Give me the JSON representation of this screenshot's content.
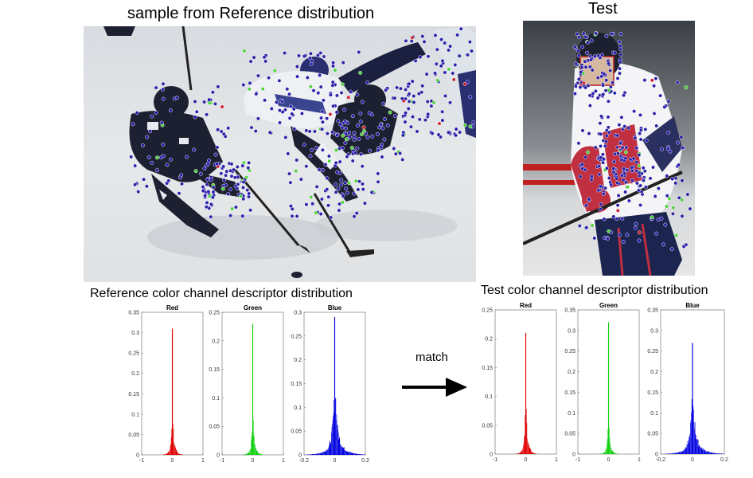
{
  "figure": {
    "reference_title": "sample from Reference distribution",
    "test_title": "Test",
    "reference_hist_title": "Reference color channel descriptor distribution",
    "test_hist_title": "Test color channel descriptor distribution",
    "match_label": "match"
  },
  "colors": {
    "red": "#e00000",
    "green": "#10d010",
    "blue": "#0000e0",
    "keypoint": "#2a1fa8",
    "keypoint_green": "#4cd23a",
    "keypoint_red": "#d02030"
  },
  "icons": {
    "arrow": "arrow-right-icon"
  },
  "chart_data": [
    {
      "type": "histogram",
      "group": "reference",
      "title": "Red",
      "color": "#e00000",
      "xlim": [
        -1,
        1
      ],
      "ylim": [
        0,
        0.35
      ],
      "xticks": [
        -1,
        0,
        1
      ],
      "xtick_labels": [
        "-1",
        "0",
        "1"
      ],
      "yticks": [
        0,
        0.05,
        0.1,
        0.15,
        0.2,
        0.25,
        0.3,
        0.35
      ],
      "ytick_labels": [
        "0",
        "0.05",
        "0.1",
        "0.15",
        "0.2",
        "0.25",
        "0.3",
        "0.35"
      ],
      "peak": 0.31,
      "center": 0.0,
      "spread": 0.02,
      "tail": 0.04
    },
    {
      "type": "histogram",
      "group": "reference",
      "title": "Green",
      "color": "#10d010",
      "xlim": [
        -1,
        1
      ],
      "ylim": [
        0,
        0.25
      ],
      "xticks": [
        -1,
        0,
        1
      ],
      "xtick_labels": [
        "-1",
        "0",
        "1"
      ],
      "yticks": [
        0,
        0.05,
        0.1,
        0.15,
        0.2,
        0.25
      ],
      "ytick_labels": [
        "0",
        "0.05",
        "0.1",
        "0.15",
        "0.2",
        "0.25"
      ],
      "peak": 0.23,
      "center": 0.0,
      "spread": 0.02,
      "tail": 0.03
    },
    {
      "type": "histogram",
      "group": "reference",
      "title": "Blue",
      "color": "#0000e0",
      "xlim": [
        -0.2,
        0.2
      ],
      "ylim": [
        0,
        0.3
      ],
      "xticks": [
        -0.2,
        0,
        0.2
      ],
      "xtick_labels": [
        "-0.2",
        "0",
        "0.2"
      ],
      "yticks": [
        0,
        0.05,
        0.1,
        0.15,
        0.2,
        0.25,
        0.3
      ],
      "ytick_labels": [
        "0",
        "0.05",
        "0.1",
        "0.15",
        "0.2",
        "0.25",
        "0.3"
      ],
      "peak": 0.29,
      "center": 0.0,
      "spread": 0.012,
      "tail": 0.035
    },
    {
      "type": "histogram",
      "group": "test",
      "title": "Red",
      "color": "#e00000",
      "xlim": [
        -1,
        1
      ],
      "ylim": [
        0,
        0.25
      ],
      "xticks": [
        -1,
        0,
        1
      ],
      "xtick_labels": [
        "-1",
        "0",
        "1"
      ],
      "yticks": [
        0,
        0.05,
        0.1,
        0.15,
        0.2,
        0.25
      ],
      "ytick_labels": [
        "0",
        "0.05",
        "0.1",
        "0.15",
        "0.2",
        "0.25"
      ],
      "peak": 0.21,
      "center": 0.0,
      "spread": 0.02,
      "tail": 0.04
    },
    {
      "type": "histogram",
      "group": "test",
      "title": "Green",
      "color": "#10d010",
      "xlim": [
        -1,
        1
      ],
      "ylim": [
        0,
        0.35
      ],
      "xticks": [
        -1,
        0,
        1
      ],
      "xtick_labels": [
        "-1",
        "0",
        "1"
      ],
      "yticks": [
        0,
        0.05,
        0.1,
        0.15,
        0.2,
        0.25,
        0.3,
        0.35
      ],
      "ytick_labels": [
        "0",
        "0.05",
        "0.1",
        "0.15",
        "0.2",
        "0.25",
        "0.3",
        "0.35"
      ],
      "peak": 0.32,
      "center": 0.0,
      "spread": 0.02,
      "tail": 0.03
    },
    {
      "type": "histogram",
      "group": "test",
      "title": "Blue",
      "color": "#0000e0",
      "xlim": [
        -0.2,
        0.2
      ],
      "ylim": [
        0,
        0.35
      ],
      "xticks": [
        -0.2,
        0,
        0.2
      ],
      "xtick_labels": [
        "-0.2",
        "0",
        "0.2"
      ],
      "yticks": [
        0,
        0.05,
        0.1,
        0.15,
        0.2,
        0.25,
        0.3,
        0.35
      ],
      "ytick_labels": [
        "0",
        "0.05",
        "0.1",
        "0.15",
        "0.2",
        "0.25",
        "0.3",
        "0.35"
      ],
      "peak": 0.27,
      "center": 0.0,
      "spread": 0.012,
      "tail": 0.035
    }
  ]
}
